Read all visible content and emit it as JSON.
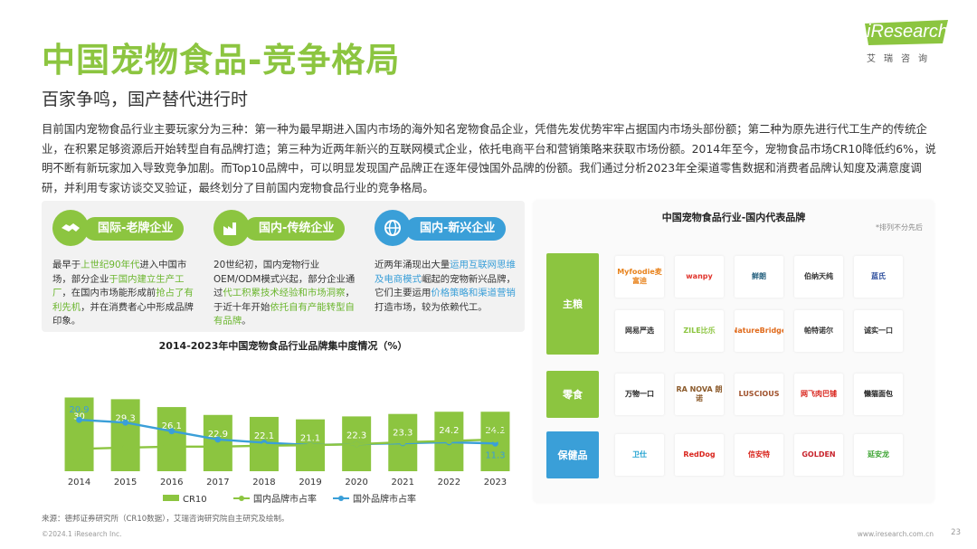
{
  "page": {
    "title": "中国宠物食品-竞争格局",
    "subtitle": "百家争鸣，国产替代进行时",
    "intro": "目前国内宠物食品行业主要玩家分为三种：第一种为最早期进入国内市场的海外知名宠物食品企业，凭借先发优势牢牢占据国内市场头部份额；第二种为原先进行代工生产的传统企业，在积累足够资源后开始转型自有品牌打造；第三种为近两年新兴的互联网模式企业，依托电商平台和营销策略来获取市场份额。2014年至今，宠物食品市场CR10降低约6%，说明不断有新玩家加入导致竞争加剧。而Top10品牌中，可以明显发现国产品牌正在逐年侵蚀国外品牌的份额。我们通过分析2023年全渠道零售数据和消费者品牌认知度及满意度调研，并利用专家访谈交叉验证，最终划分了目前国内宠物食品行业的竞争格局。",
    "source": "来源：德邦证券研究所（CR10数据），艾瑞咨询研究院自主研究及绘制。",
    "copyright": "©2024.1 iResearch Inc.",
    "url": "www.iresearch.com.cn",
    "page_number": "23"
  },
  "logo": {
    "name": "iResearch",
    "sub": "艾瑞咨询"
  },
  "categories": [
    {
      "label": "国际-老牌企业",
      "color": "#8CC540",
      "icon": "handshake-icon",
      "desc": [
        [
          "最早于",
          ""
        ],
        [
          "上世纪90年代",
          "g"
        ],
        [
          "进入中国市场，部分企业",
          ""
        ],
        [
          "于国内建立生产工厂",
          "g"
        ],
        [
          "，在国内市场能形成前",
          ""
        ],
        [
          "抢占了有利先机",
          "g"
        ],
        [
          "，并在消费者心中形成品牌印象。",
          ""
        ]
      ]
    },
    {
      "label": "国内-传统企业",
      "color": "#8CC540",
      "icon": "factory-icon",
      "desc": [
        [
          "20世纪初，国内宠物行业OEM/ODM模式兴起，部分企业通过",
          ""
        ],
        [
          "代工积累技术经验和市场洞察",
          "g"
        ],
        [
          "，于近十年开始",
          ""
        ],
        [
          "依托自有产能转型自有品牌",
          "g"
        ],
        [
          "。",
          ""
        ]
      ]
    },
    {
      "label": "国内-新兴企业",
      "color": "#3A9FD8",
      "icon": "globe-icon",
      "desc": [
        [
          "近两年涌现出大量",
          ""
        ],
        [
          "运用互联网思维及电商模式",
          "b"
        ],
        [
          "崛起的宠物新兴品牌，它们主要运用",
          ""
        ],
        [
          "价格策略和渠道营销",
          "b"
        ],
        [
          "打造市场，较为依赖代工。",
          ""
        ]
      ]
    }
  ],
  "chart_data": {
    "type": "bar+line",
    "title": "2014-2023年中国宠物食品行业品牌集中度情况（%）",
    "categories": [
      "2014",
      "2015",
      "2016",
      "2017",
      "2018",
      "2019",
      "2020",
      "2021",
      "2022",
      "2023"
    ],
    "series": [
      {
        "name": "CR10",
        "type": "bar",
        "color": "#8CC540",
        "values": [
          30,
          29.3,
          26.1,
          22.9,
          22.1,
          21.1,
          22.3,
          23.3,
          24.2,
          24.2
        ]
      },
      {
        "name": "国内品牌市占率",
        "type": "line",
        "color": "#8CC540",
        "values": [
          9.1,
          9.6,
          10.0,
          10.0,
          10.4,
          10.6,
          11.0,
          11.8,
          12.3,
          12.9
        ],
        "labels": {
          "0": "9.1",
          "9": "12.9"
        }
      },
      {
        "name": "国外品牌市占率",
        "type": "line",
        "color": "#3A9FD8",
        "values": [
          20.9,
          19.8,
          16.3,
          12.9,
          11.6,
          10.7,
          11.0,
          11.4,
          11.8,
          11.3
        ],
        "labels": {
          "0": "20.9",
          "9": "11.3"
        }
      }
    ],
    "legend_position": "bottom"
  },
  "brands_panel": {
    "title": "中国宠物食品行业-国内代表品牌",
    "note": "*排列不分先后",
    "rows": [
      {
        "label": "主粮",
        "color": "#8CC540",
        "brands": [
          {
            "name": "Myfoodie麦富迪",
            "color": "#E8831D"
          },
          {
            "name": "wanpy",
            "color": "#E0332B"
          },
          {
            "name": "鲜朗",
            "color": "#1E5B7A"
          },
          {
            "name": "伯纳天纯",
            "color": "#333333"
          },
          {
            "name": "蓝氏",
            "color": "#2B4C9B"
          },
          {
            "name": "网易严选",
            "color": "#333333"
          },
          {
            "name": "ZILE比乐",
            "color": "#8CC540"
          },
          {
            "name": "NatureBridge",
            "color": "#E06A1B"
          },
          {
            "name": "帕特诺尔",
            "color": "#333333"
          },
          {
            "name": "诚实一口",
            "color": "#333333"
          }
        ]
      },
      {
        "label": "零食",
        "color": "#8CC540",
        "brands": [
          {
            "name": "万物一口",
            "color": "#222222"
          },
          {
            "name": "RA NOVA 朗诺",
            "color": "#8B5A2B"
          },
          {
            "name": "LUSCIOUS",
            "color": "#A0522D"
          },
          {
            "name": "网飞肉巴铺",
            "color": "#D9251D"
          },
          {
            "name": "懒猫面包",
            "color": "#222222"
          }
        ]
      },
      {
        "label": "保健品",
        "color": "#3A9FD8",
        "brands": [
          {
            "name": "卫仕",
            "color": "#1A9FCF"
          },
          {
            "name": "RedDog",
            "color": "#D9251D"
          },
          {
            "name": "信安特",
            "color": "#D9251D"
          },
          {
            "name": "GOLDEN",
            "color": "#C8232C"
          },
          {
            "name": "延安龙",
            "color": "#3FA535"
          }
        ]
      }
    ]
  }
}
